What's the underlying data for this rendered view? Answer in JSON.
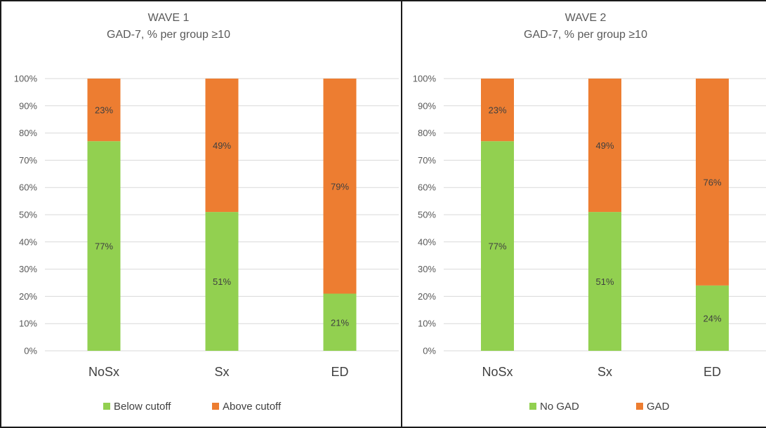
{
  "colors": {
    "below": "#92d050",
    "above": "#ed7d31",
    "grid": "#d9d9d9",
    "frame": "#1a1a1a"
  },
  "chart_data": [
    {
      "type": "bar",
      "stacked": true,
      "percent_stacked": true,
      "title": "WAVE 1",
      "subtitle": "GAD-7, % per group ≥10",
      "categories": [
        "NoSx",
        "Sx",
        "ED"
      ],
      "series": [
        {
          "name": "Below cutoff",
          "color": "#92d050",
          "values": [
            77,
            51,
            21
          ],
          "labels": [
            "77%",
            "51%",
            "21%"
          ]
        },
        {
          "name": "Above cutoff",
          "color": "#ed7d31",
          "values": [
            23,
            49,
            79
          ],
          "labels": [
            "23%",
            "49%",
            "79%"
          ]
        }
      ],
      "yticks": [
        "0%",
        "10%",
        "20%",
        "30%",
        "40%",
        "50%",
        "60%",
        "70%",
        "80%",
        "90%",
        "100%"
      ],
      "ylim": [
        0,
        100
      ],
      "grid": true,
      "legend_position": "bottom"
    },
    {
      "type": "bar",
      "stacked": true,
      "percent_stacked": true,
      "title": "WAVE 2",
      "subtitle": "GAD-7, % per group ≥10",
      "categories": [
        "NoSx",
        "Sx",
        "ED"
      ],
      "series": [
        {
          "name": "No GAD",
          "color": "#92d050",
          "values": [
            77,
            51,
            24
          ],
          "labels": [
            "77%",
            "51%",
            "24%"
          ]
        },
        {
          "name": "GAD",
          "color": "#ed7d31",
          "values": [
            23,
            49,
            76
          ],
          "labels": [
            "23%",
            "49%",
            "76%"
          ]
        }
      ],
      "yticks": [
        "0%",
        "10%",
        "20%",
        "30%",
        "40%",
        "50%",
        "60%",
        "70%",
        "80%",
        "90%",
        "100%"
      ],
      "ylim": [
        0,
        100
      ],
      "grid": true,
      "legend_position": "bottom"
    }
  ]
}
